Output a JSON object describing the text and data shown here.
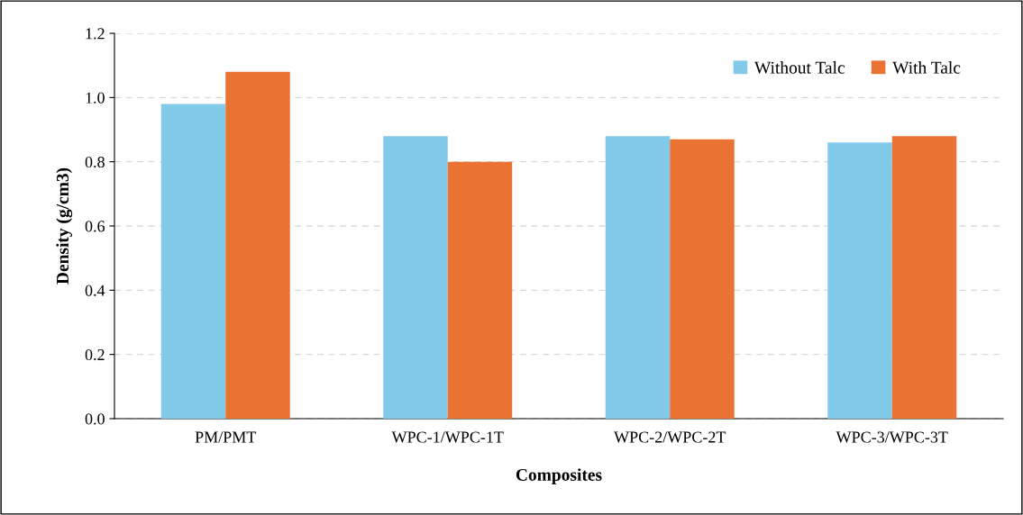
{
  "chart_data": {
    "type": "bar",
    "xlabel": "Composites",
    "ylabel": "Density (g/cm3)",
    "categories": [
      "PM/PMT",
      "WPC-1/WPC-1T",
      "WPC-2/WPC-2T",
      "WPC-3/WPC-3T"
    ],
    "series": [
      {
        "name": "Without Talc",
        "color": "#82caea",
        "values": [
          0.98,
          0.88,
          0.88,
          0.86
        ]
      },
      {
        "name": "With Talc",
        "color": "#ea7233",
        "values": [
          1.08,
          0.8,
          0.87,
          0.88
        ]
      }
    ],
    "ylim": [
      0,
      1.2
    ],
    "yticks": [
      {
        "value": 0,
        "label": "0.0"
      },
      {
        "value": 0.2,
        "label": "0.2"
      },
      {
        "value": 0.4,
        "label": "0.4"
      },
      {
        "value": 0.6,
        "label": "0.6"
      },
      {
        "value": 0.8,
        "label": "0.8"
      },
      {
        "value": 1.0,
        "label": "1.0"
      },
      {
        "value": 1.2,
        "label": "1.2"
      }
    ],
    "grid": "y",
    "legend": "top right"
  }
}
